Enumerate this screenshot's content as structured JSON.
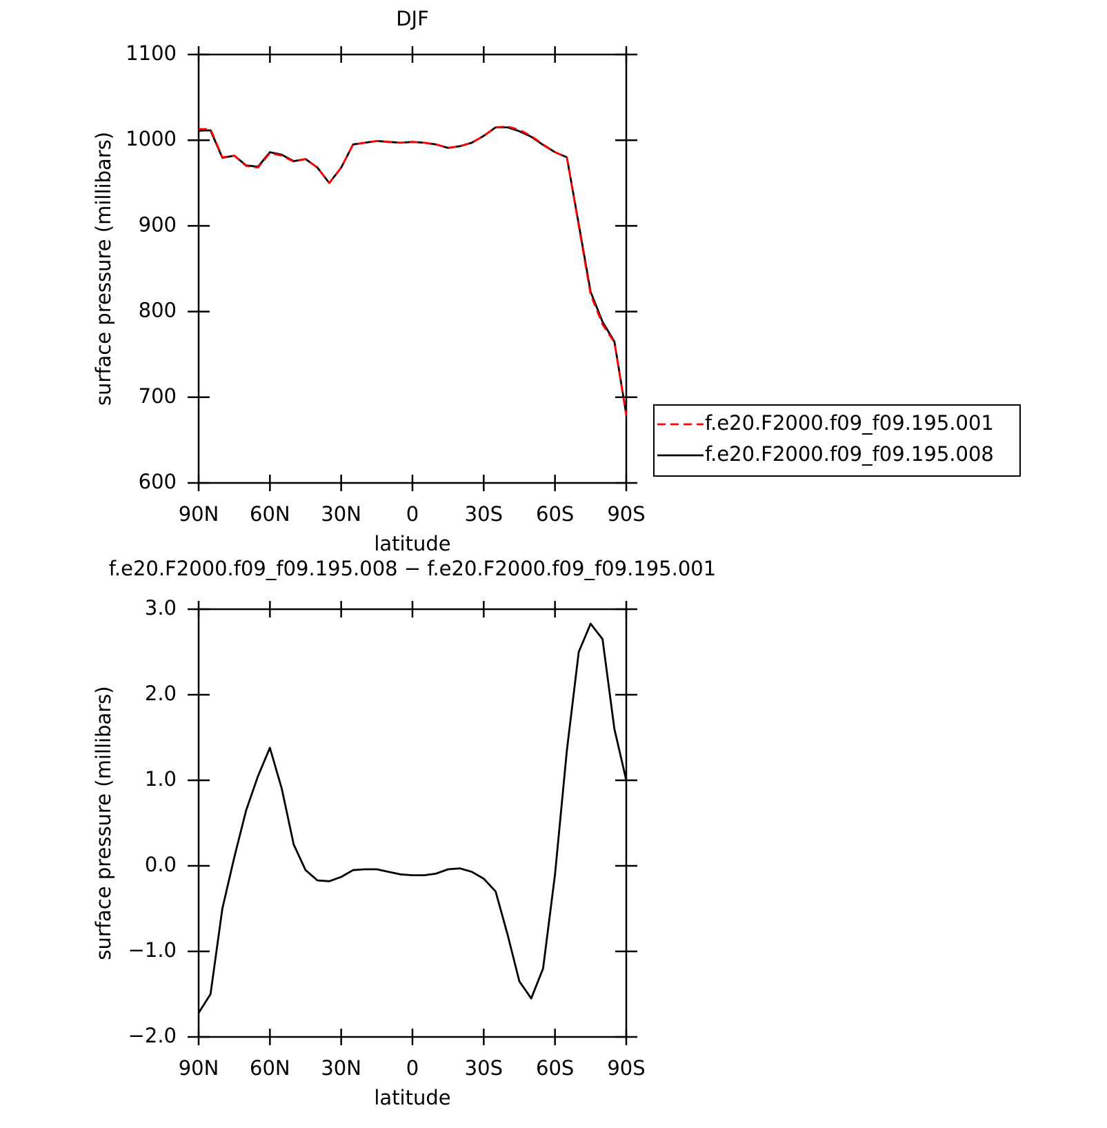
{
  "chart_data": [
    {
      "type": "line",
      "title": "DJF",
      "xlabel": "latitude",
      "ylabel": "surface pressure (millibars)",
      "x": [
        90,
        85,
        80,
        75,
        70,
        65,
        60,
        55,
        50,
        45,
        40,
        35,
        30,
        25,
        20,
        15,
        10,
        5,
        0,
        -5,
        -10,
        -15,
        -20,
        -25,
        -30,
        -35,
        -40,
        -45,
        -50,
        -55,
        -60,
        -65,
        -70,
        -75,
        -80,
        -85,
        -90
      ],
      "xlim": [
        90,
        -90
      ],
      "xticks": [
        {
          "value": 90,
          "label": "90N"
        },
        {
          "value": 60,
          "label": "60N"
        },
        {
          "value": 30,
          "label": "30N"
        },
        0,
        {
          "value": -30,
          "label": "30S"
        },
        {
          "value": -60,
          "label": "60S"
        },
        {
          "value": -90,
          "label": "90S"
        }
      ],
      "ylim": [
        600,
        1100
      ],
      "yticks": [
        600,
        700,
        800,
        900,
        1000,
        1100
      ],
      "legend": "right",
      "series": [
        {
          "name": "f.e20.F2000.f09_f09.195.001",
          "color": "#ff0000",
          "dashed": true,
          "values": [
            1013,
            1013,
            980,
            982,
            970,
            968,
            985,
            982,
            975,
            978,
            968,
            950,
            968,
            995,
            997,
            999,
            998,
            997,
            998,
            997,
            995,
            991,
            993,
            997,
            1005,
            1015,
            1016,
            1012,
            1005,
            995,
            986,
            980,
            900,
            820,
            785,
            764,
            679
          ]
        },
        {
          "name": "f.e20.F2000.f09_f09.195.008",
          "color": "#000000",
          "dashed": false,
          "values": [
            1011,
            1011.5,
            979.5,
            982,
            970.5,
            969,
            986,
            983,
            975.5,
            978,
            968,
            950,
            968,
            995,
            997,
            999,
            998,
            997,
            998,
            997,
            995,
            991,
            993,
            997,
            1005,
            1015,
            1015,
            1010.5,
            1004,
            994.5,
            986,
            980,
            902,
            823,
            788,
            765,
            680
          ]
        }
      ]
    },
    {
      "type": "line",
      "title": "f.e20.F2000.f09_f09.195.008 − f.e20.F2000.f09_f09.195.001",
      "xlabel": "latitude",
      "ylabel": "surface pressure (millibars)",
      "x": [
        90,
        85,
        80,
        75,
        70,
        65,
        60,
        55,
        50,
        45,
        40,
        35,
        30,
        25,
        20,
        15,
        10,
        5,
        0,
        -5,
        -10,
        -15,
        -20,
        -25,
        -30,
        -35,
        -40,
        -45,
        -50,
        -55,
        -60,
        -65,
        -70,
        -75,
        -80,
        -85,
        -90
      ],
      "xlim": [
        90,
        -90
      ],
      "xticks": [
        {
          "value": 90,
          "label": "90N"
        },
        {
          "value": 60,
          "label": "60N"
        },
        {
          "value": 30,
          "label": "30N"
        },
        0,
        {
          "value": -30,
          "label": "30S"
        },
        {
          "value": -60,
          "label": "60S"
        },
        {
          "value": -90,
          "label": "90S"
        }
      ],
      "ylim": [
        -2,
        3
      ],
      "yticks": [
        {
          "value": -2,
          "label": "−2.0"
        },
        {
          "value": -1,
          "label": "−1.0"
        },
        {
          "value": 0,
          "label": "0.0"
        },
        {
          "value": 1,
          "label": "1.0"
        },
        {
          "value": 2,
          "label": "2.0"
        },
        {
          "value": 3,
          "label": "3.0"
        }
      ],
      "color": "#000000",
      "values": [
        -1.72,
        -1.5,
        -0.5,
        0.1,
        0.65,
        1.05,
        1.38,
        0.9,
        0.25,
        -0.05,
        -0.17,
        -0.18,
        -0.13,
        -0.05,
        -0.04,
        -0.04,
        -0.07,
        -0.1,
        -0.11,
        -0.11,
        -0.09,
        -0.04,
        -0.03,
        -0.07,
        -0.15,
        -0.3,
        -0.8,
        -1.35,
        -1.55,
        -1.2,
        -0.1,
        1.35,
        2.5,
        2.83,
        2.65,
        1.6,
        1.0
      ]
    }
  ]
}
